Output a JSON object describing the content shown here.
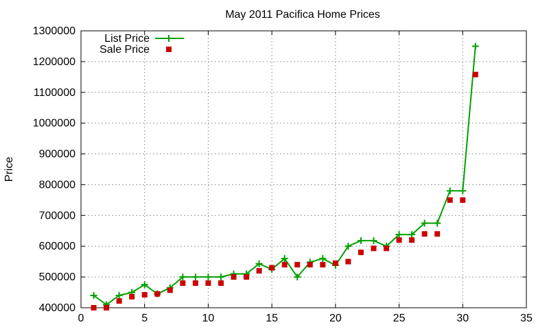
{
  "chart_data": {
    "type": "line",
    "title": "May 2011 Pacifica Home Prices",
    "xlabel": "",
    "ylabel": "Price",
    "xlim": [
      0,
      35
    ],
    "ylim": [
      400000,
      1300000
    ],
    "xticks": [
      0,
      5,
      10,
      15,
      20,
      25,
      30,
      35
    ],
    "yticks": [
      400000,
      500000,
      600000,
      700000,
      800000,
      900000,
      1000000,
      1100000,
      1200000,
      1300000
    ],
    "grid": true,
    "legend_position": "top-left",
    "x": [
      1,
      2,
      3,
      4,
      5,
      6,
      7,
      8,
      9,
      10,
      11,
      12,
      13,
      14,
      15,
      16,
      17,
      18,
      19,
      20,
      21,
      22,
      23,
      24,
      25,
      26,
      27,
      28,
      29,
      30,
      31
    ],
    "series": [
      {
        "name": "List Price",
        "style": "linespoints",
        "color": "#00a000",
        "values": [
          440000,
          410000,
          440000,
          450000,
          475000,
          445000,
          465000,
          500000,
          500000,
          500000,
          500000,
          510000,
          510000,
          543000,
          525000,
          560000,
          500000,
          548000,
          560000,
          538000,
          600000,
          618000,
          618000,
          600000,
          638000,
          638000,
          675000,
          675000,
          780000,
          780000,
          1250000
        ]
      },
      {
        "name": "Sale Price",
        "style": "points",
        "color": "#cc0000",
        "values": [
          400000,
          400000,
          422000,
          436000,
          442000,
          445000,
          457000,
          480000,
          480000,
          480000,
          480000,
          500000,
          500000,
          520000,
          530000,
          540000,
          540000,
          540000,
          540000,
          545000,
          550000,
          580000,
          593000,
          593000,
          620000,
          620000,
          640000,
          640000,
          750000,
          750000,
          1158000
        ]
      }
    ]
  }
}
